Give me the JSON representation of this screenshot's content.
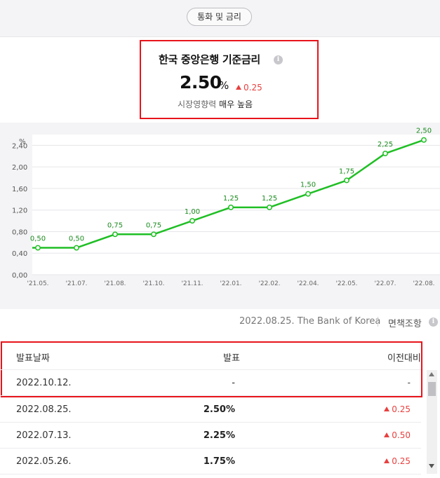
{
  "header": {
    "pill_label": "통화 및 금리"
  },
  "rate": {
    "title": "한국 중앙은행 기준금리",
    "value": "2.50",
    "unit": "%",
    "change": "0.25",
    "sub_prefix": "시장영향력",
    "sub_level": "매우 높음"
  },
  "source": "2022.08.25. The Bank of Korea",
  "disclaimer": "면책조항",
  "table": {
    "headers": [
      "발표날짜",
      "발표",
      "이전대비"
    ],
    "rows": [
      {
        "date": "2022.10.12.",
        "value": "-",
        "change": "-"
      },
      {
        "date": "2022.08.25.",
        "value": "2.50%",
        "change": "0.25"
      },
      {
        "date": "2022.07.13.",
        "value": "2.25%",
        "change": "0.50"
      },
      {
        "date": "2022.05.26.",
        "value": "1.75%",
        "change": "0.25"
      }
    ]
  },
  "colors": {
    "line": "#1fbf24",
    "up": "#e84040",
    "highlight": "#e8141b"
  },
  "chart_data": {
    "type": "line",
    "ylabel": "%",
    "ylim": [
      0,
      2.6
    ],
    "yticks": [
      "0,00",
      "0,40",
      "0,80",
      "1,20",
      "1,60",
      "2,00",
      "2,40"
    ],
    "categories": [
      "'21.05.",
      "'21.07.",
      "'21.08.",
      "'21.10.",
      "'21.11.",
      "'22.01.",
      "'22.02.",
      "'22.04.",
      "'22.05.",
      "'22.07.",
      "'22.08."
    ],
    "values": [
      0.5,
      0.5,
      0.75,
      0.75,
      1.0,
      1.25,
      1.25,
      1.5,
      1.75,
      2.25,
      2.5
    ],
    "labels": [
      "0,50",
      "0,50",
      "0,75",
      "0,75",
      "1,00",
      "1,25",
      "1,25",
      "1,50",
      "1,75",
      "2,25",
      "2,50"
    ],
    "grid": true
  }
}
